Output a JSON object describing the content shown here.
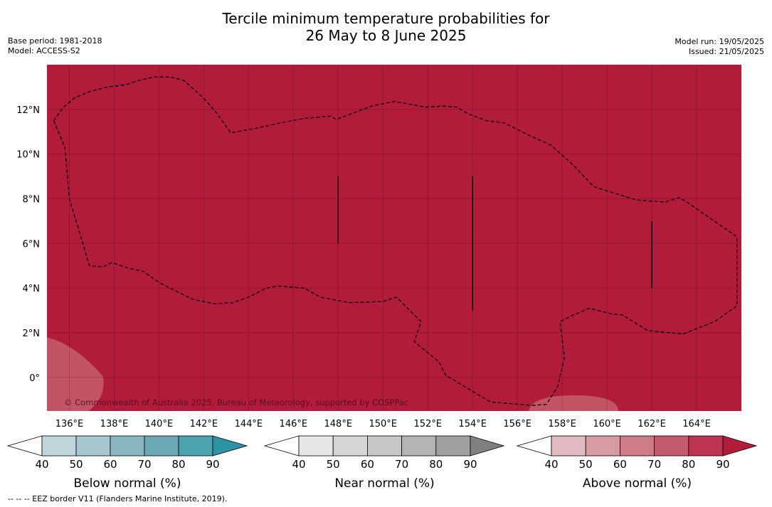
{
  "header": {
    "title_line1": "Tercile minimum temperature probabilities for",
    "title_line2": "26 May to 8 June 2025",
    "base_period": "Base period: 1981-2018",
    "model": "Model: ACCESS-S2",
    "model_run": "Model run: 19/05/2025",
    "issued": "Issued: 21/05/2025"
  },
  "map": {
    "background_color": "#b21c3a",
    "grid": true,
    "attribution": "© Commonwealth of Australia 2025, Bureau of Meteorology, supported by COSPPac",
    "eez_line_style": "dashed"
  },
  "chart_data": {
    "type": "heatmap",
    "title": "Tercile minimum temperature probabilities for 26 May to 8 June 2025",
    "xlim": [
      135,
      166
    ],
    "ylim": [
      -1.5,
      14
    ],
    "x_ticks": [
      136,
      138,
      140,
      142,
      144,
      146,
      148,
      150,
      152,
      154,
      156,
      158,
      160,
      162,
      164
    ],
    "x_tick_labels": [
      "136°E",
      "138°E",
      "140°E",
      "142°E",
      "144°E",
      "146°E",
      "148°E",
      "150°E",
      "152°E",
      "154°E",
      "156°E",
      "158°E",
      "160°E",
      "162°E",
      "164°E"
    ],
    "y_ticks": [
      0,
      2,
      4,
      6,
      8,
      10,
      12
    ],
    "y_tick_labels": [
      "0°",
      "2°N",
      "4°N",
      "6°N",
      "8°N",
      "10°N",
      "12°N"
    ],
    "dominant_category": "Above normal",
    "dominant_probability_bin": "90+",
    "regions": [
      {
        "category": "Above normal",
        "bin": "70-80",
        "lon": [
          135,
          137.5
        ],
        "lat": [
          -1.5,
          1.8
        ]
      },
      {
        "category": "Above normal",
        "bin": "70-80",
        "lon": [
          156.5,
          160.5
        ],
        "lat": [
          -1.5,
          -0.8
        ]
      }
    ],
    "eez_border": [
      [
        135.3,
        11.5
      ],
      [
        135.8,
        10.3
      ],
      [
        136,
        8
      ],
      [
        136.9,
        5
      ],
      [
        137.5,
        4.95
      ],
      [
        137.9,
        5.15
      ],
      [
        138.6,
        4.9
      ],
      [
        139.3,
        4.75
      ],
      [
        140,
        4.25
      ],
      [
        141.5,
        3.5
      ],
      [
        142.5,
        3.3
      ],
      [
        143.3,
        3.35
      ],
      [
        144,
        3.6
      ],
      [
        144.8,
        4
      ],
      [
        145.3,
        4.1
      ],
      [
        146.5,
        4
      ],
      [
        147.2,
        3.6
      ],
      [
        148.5,
        3.35
      ],
      [
        150,
        3.4
      ],
      [
        150.6,
        3.6
      ],
      [
        151.2,
        3
      ],
      [
        151.7,
        2.5
      ],
      [
        151.4,
        1.6
      ],
      [
        152.5,
        0.7
      ],
      [
        152.8,
        0.1
      ],
      [
        154.8,
        -1.1
      ],
      [
        156.7,
        -1.25
      ],
      [
        157.3,
        -1.2
      ],
      [
        157.8,
        -0.4
      ],
      [
        158.1,
        0.9
      ],
      [
        157.9,
        2.5
      ],
      [
        158.5,
        2.8
      ],
      [
        159.2,
        3.1
      ],
      [
        160.2,
        2.85
      ],
      [
        160.7,
        2.8
      ],
      [
        161.8,
        2.1
      ],
      [
        163.4,
        1.95
      ],
      [
        164.8,
        2.5
      ],
      [
        165.8,
        3.2
      ],
      [
        165.8,
        6.3
      ],
      [
        164.5,
        7.2
      ],
      [
        163.5,
        7.9
      ],
      [
        163.2,
        8.05
      ],
      [
        162.6,
        7.85
      ],
      [
        161.9,
        7.9
      ],
      [
        161.3,
        7.95
      ],
      [
        160,
        8.35
      ],
      [
        159.4,
        8.55
      ],
      [
        158.5,
        9.5
      ],
      [
        157.5,
        10.4
      ],
      [
        156.6,
        10.8
      ],
      [
        155.4,
        11.4
      ],
      [
        154.6,
        11.5
      ],
      [
        153.8,
        11.8
      ],
      [
        153.3,
        12.1
      ],
      [
        152.7,
        12.15
      ],
      [
        151.9,
        12.1
      ],
      [
        151.4,
        12.2
      ],
      [
        150.5,
        12.35
      ],
      [
        149.5,
        12.15
      ],
      [
        148.7,
        11.85
      ],
      [
        147.9,
        11.55
      ],
      [
        147.7,
        11.7
      ],
      [
        146.5,
        11.6
      ],
      [
        145.7,
        11.45
      ],
      [
        144.3,
        11.15
      ],
      [
        143.2,
        10.95
      ],
      [
        142.6,
        11.8
      ],
      [
        142,
        12.5
      ],
      [
        141.1,
        13.3
      ],
      [
        140.5,
        13.45
      ],
      [
        139.8,
        13.45
      ],
      [
        139.1,
        13.3
      ],
      [
        138.5,
        13.1
      ],
      [
        137.7,
        13
      ],
      [
        136.9,
        12.8
      ],
      [
        136.2,
        12.5
      ],
      [
        135.7,
        12.05
      ],
      [
        135.3,
        11.5
      ]
    ],
    "line_features": [
      {
        "lon": [
          148,
          148
        ],
        "lat": [
          9,
          6
        ]
      },
      {
        "lon": [
          154,
          154
        ],
        "lat": [
          9,
          3
        ]
      },
      {
        "lon": [
          162,
          162
        ],
        "lat": [
          7,
          4
        ]
      }
    ],
    "colorbars": [
      {
        "label": "Below normal (%)",
        "ticks": [
          "40",
          "50",
          "60",
          "70",
          "80",
          "90"
        ],
        "colors": [
          "#ffffff",
          "#bfd4db",
          "#a6c7cd",
          "#8ab6bf",
          "#6aa8b4",
          "#4aa1b0",
          "#2e92a5"
        ]
      },
      {
        "label": "Near normal (%)",
        "ticks": [
          "40",
          "50",
          "60",
          "70",
          "80",
          "90"
        ],
        "colors": [
          "#ffffff",
          "#e6e6e6",
          "#d6d6d6",
          "#c6c6c6",
          "#b3b3b3",
          "#a0a0a0",
          "#808080"
        ]
      },
      {
        "label": "Above normal (%)",
        "ticks": [
          "40",
          "50",
          "60",
          "70",
          "80",
          "90"
        ],
        "colors": [
          "#ffffff",
          "#e0b8bf",
          "#d59aa2",
          "#cd7b86",
          "#c45b6c",
          "#bb3550",
          "#b21c3a"
        ]
      }
    ]
  },
  "footnote": "--  --  -- EEZ border V11 (Flanders Marine Institute, 2019)."
}
